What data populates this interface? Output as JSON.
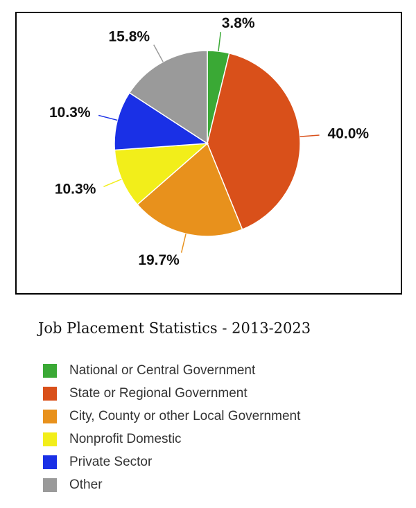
{
  "chart_data": {
    "type": "pie",
    "title": "Job Placement Statistics - 2013-2023",
    "categories": [
      "National or Central Government",
      "State or Regional Government",
      "City, County or other Local Government",
      "Nonprofit Domestic",
      "Private Sector",
      "Other"
    ],
    "values": [
      3.8,
      40.0,
      19.7,
      10.3,
      10.3,
      15.8
    ],
    "value_labels": [
      "3.8%",
      "40.0%",
      "19.7%",
      "10.3%",
      "10.3%",
      "15.8%"
    ],
    "colors": [
      "#3aa935",
      "#d9501a",
      "#e8911c",
      "#f2ee1a",
      "#1a30e6",
      "#9a9a9a"
    ]
  }
}
